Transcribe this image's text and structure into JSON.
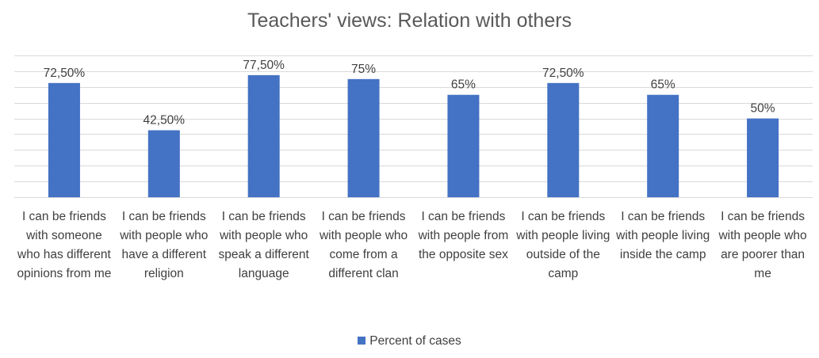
{
  "chart_data": {
    "type": "bar",
    "title": "Teachers' views: Relation with others",
    "xlabel": "",
    "ylabel": "",
    "ylim": [
      0,
      90
    ],
    "grid": true,
    "legend_position": "bottom",
    "bar_color": "#4472C4",
    "grid_color": "#D9D9D9",
    "categories": [
      "I can be friends with someone who has different opinions from me",
      "I can be friends with people who have a different religion",
      "I can be friends with people who speak a different language",
      "I can be friends with people who come from a different clan",
      "I can be friends with people from the opposite sex",
      "I can be friends with people living outside of the camp",
      "I can be friends with people living inside the camp",
      "I can be friends with people who are poorer than me"
    ],
    "series": [
      {
        "name": "Percent of cases",
        "values": [
          72.5,
          42.5,
          77.5,
          75,
          65,
          72.5,
          65,
          50
        ],
        "data_labels": [
          "72,50%",
          "42,50%",
          "77,50%",
          "75%",
          "65%",
          "72,50%",
          "65%",
          "50%"
        ]
      }
    ]
  }
}
